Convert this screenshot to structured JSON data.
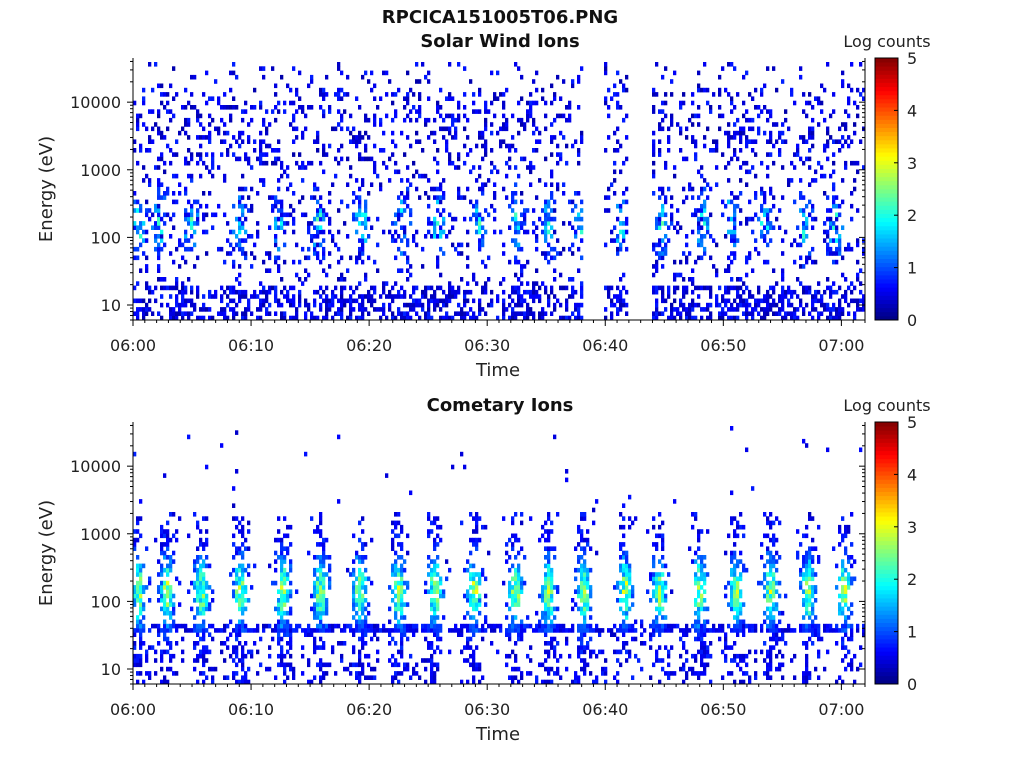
{
  "figure": {
    "title": "RPCICA151005T06.PNG"
  },
  "chart_data": [
    {
      "type": "heatmap",
      "title": "Solar Wind Ions",
      "xlabel": "Time",
      "ylabel": "Energy (eV)",
      "x_ticks": [
        "06:00",
        "06:10",
        "06:20",
        "06:30",
        "06:40",
        "06:50",
        "07:00"
      ],
      "xlim": [
        "06:00",
        "07:02"
      ],
      "y_scale": "log",
      "y_ticks": [
        10,
        100,
        1000,
        10000
      ],
      "y_tick_labels": [
        "10",
        "100",
        "1000",
        "10000"
      ],
      "ylim": [
        6,
        45000
      ],
      "colorbar": {
        "label": "Log counts",
        "range": [
          0,
          5
        ],
        "ticks": [
          "0",
          "1",
          "2",
          "3",
          "4",
          "5"
        ],
        "colormap": "jet"
      },
      "data_gaps": [
        [
          "06:38",
          "06:40"
        ],
        [
          "06:42",
          "06:44"
        ]
      ],
      "bursts_minutes": [
        0.5,
        2.3,
        4.9,
        9.0,
        12.3,
        15.7,
        19.4,
        22.8,
        25.9,
        29.3,
        32.5,
        35.2,
        38.0,
        41.3,
        44.8,
        48.2,
        50.7,
        53.5,
        56.8,
        59.5
      ],
      "peak_log_counts": 2.5
    },
    {
      "type": "heatmap",
      "title": "Cometary Ions",
      "xlabel": "Time",
      "ylabel": "Energy (eV)",
      "x_ticks": [
        "06:00",
        "06:10",
        "06:20",
        "06:30",
        "06:40",
        "06:50",
        "07:00"
      ],
      "xlim": [
        "06:00",
        "07:02"
      ],
      "y_scale": "log",
      "y_ticks": [
        10,
        100,
        1000,
        10000
      ],
      "y_tick_labels": [
        "10",
        "100",
        "1000",
        "10000"
      ],
      "ylim": [
        6,
        45000
      ],
      "colorbar": {
        "label": "Log counts",
        "range": [
          0,
          5
        ],
        "ticks": [
          "0",
          "1",
          "2",
          "3",
          "4",
          "5"
        ],
        "colormap": "jet"
      },
      "bursts_minutes": [
        0.5,
        2.9,
        5.8,
        9.1,
        12.7,
        15.9,
        19.2,
        22.5,
        25.6,
        28.9,
        32.4,
        35.2,
        38.2,
        41.7,
        44.6,
        48.0,
        51.1,
        54.0,
        57.2,
        60.2
      ],
      "band_energy_eV": [
        40,
        800
      ],
      "peak_log_counts": 3.4
    }
  ]
}
